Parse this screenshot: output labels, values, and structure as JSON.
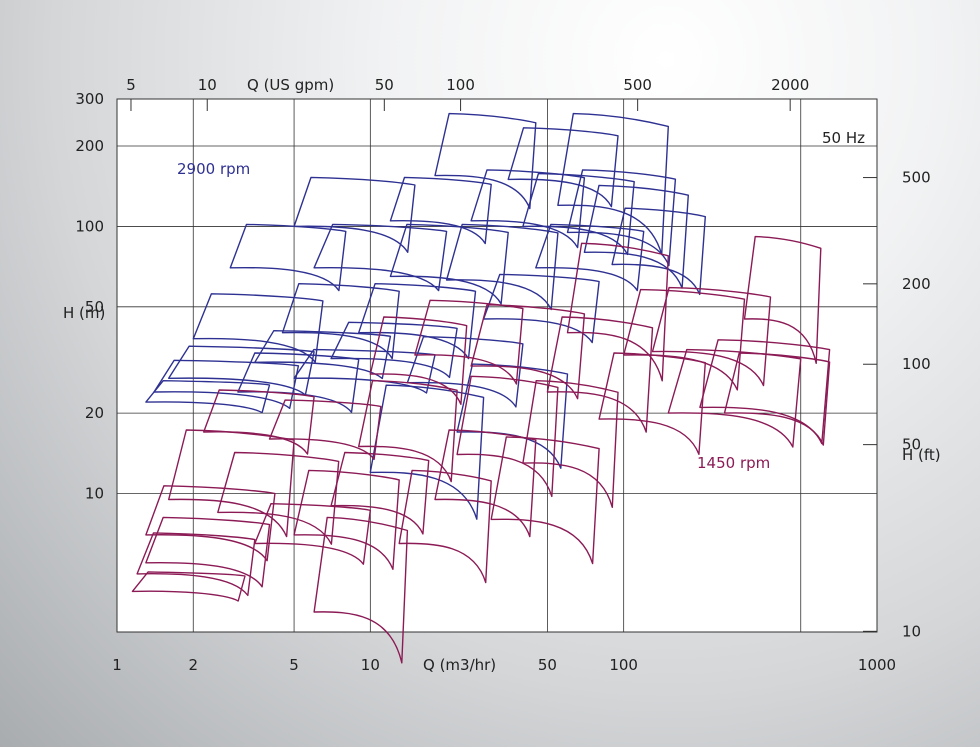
{
  "chart_data": {
    "type": "line",
    "title": "",
    "frequency_label": "50 Hz",
    "x_bottom": {
      "label": "Q (m3/hr)",
      "scale": "log",
      "range": [
        1,
        1000
      ],
      "ticks": [
        {
          "value": 1,
          "label": "1"
        },
        {
          "value": 2,
          "label": "2"
        },
        {
          "value": 5,
          "label": "5"
        },
        {
          "value": 10,
          "label": "10"
        },
        {
          "value": 50,
          "label": "50"
        },
        {
          "value": 100,
          "label": "100"
        },
        {
          "value": 1000,
          "label": "1000"
        }
      ],
      "grid_values": [
        2,
        5,
        10,
        50,
        100,
        500
      ]
    },
    "x_top": {
      "label": "Q (US gpm)",
      "scale": "log",
      "ticks": [
        {
          "value": 5,
          "label": "5"
        },
        {
          "value": 10,
          "label": "10"
        },
        {
          "value": 50,
          "label": "50"
        },
        {
          "value": 100,
          "label": "100"
        },
        {
          "value": 500,
          "label": "500"
        },
        {
          "value": 2000,
          "label": "2000"
        }
      ]
    },
    "y_left": {
      "label": "H (m)",
      "scale": "log",
      "range": [
        3.03,
        300
      ],
      "ticks": [
        {
          "value": 300,
          "label": "300"
        },
        {
          "value": 200,
          "label": "200"
        },
        {
          "value": 100,
          "label": "100"
        },
        {
          "value": 50,
          "label": "50"
        },
        {
          "value": 20,
          "label": "20"
        },
        {
          "value": 10,
          "label": "10"
        }
      ],
      "grid_values": [
        200,
        100,
        50,
        20,
        10
      ]
    },
    "y_right": {
      "label": "H (ft)",
      "scale": "log",
      "ticks": [
        {
          "value": 500,
          "label": "500"
        },
        {
          "value": 200,
          "label": "200"
        },
        {
          "value": 100,
          "label": "100"
        },
        {
          "value": 50,
          "label": "50"
        },
        {
          "value": 10,
          "label": "10"
        }
      ]
    },
    "series": [
      {
        "name": "2900 rpm",
        "color": "#2e3192",
        "regions": [
          {
            "q_min": 1.3,
            "q_max": 4.0,
            "h_top": 26,
            "h_bottom": 22
          },
          {
            "q_min": 1.4,
            "q_max": 5.2,
            "h_top": 31,
            "h_bottom": 24
          },
          {
            "q_min": 1.6,
            "q_max": 6.0,
            "h_top": 35,
            "h_bottom": 27
          },
          {
            "q_min": 2.0,
            "q_max": 6.5,
            "h_top": 55,
            "h_bottom": 38
          },
          {
            "q_min": 2.8,
            "q_max": 8.0,
            "h_top": 100,
            "h_bottom": 70
          },
          {
            "q_min": 3.0,
            "q_max": 9.0,
            "h_top": 33,
            "h_bottom": 24
          },
          {
            "q_min": 3.5,
            "q_max": 12,
            "h_top": 40,
            "h_bottom": 31
          },
          {
            "q_min": 4.5,
            "q_max": 13,
            "h_top": 60,
            "h_bottom": 40
          },
          {
            "q_min": 5.0,
            "q_max": 15,
            "h_top": 150,
            "h_bottom": 100
          },
          {
            "q_min": 5.0,
            "q_max": 18,
            "h_top": 34,
            "h_bottom": 27
          },
          {
            "q_min": 6.0,
            "q_max": 20,
            "h_top": 100,
            "h_bottom": 70
          },
          {
            "q_min": 7.0,
            "q_max": 22,
            "h_top": 43,
            "h_bottom": 32
          },
          {
            "q_min": 9.0,
            "q_max": 26,
            "h_top": 60,
            "h_bottom": 40
          },
          {
            "q_min": 10,
            "q_max": 28,
            "h_top": 25,
            "h_bottom": 12
          },
          {
            "q_min": 12,
            "q_max": 30,
            "h_top": 150,
            "h_bottom": 105
          },
          {
            "q_min": 12,
            "q_max": 35,
            "h_top": 100,
            "h_bottom": 65
          },
          {
            "q_min": 14,
            "q_max": 40,
            "h_top": 38,
            "h_bottom": 26
          },
          {
            "q_min": 18,
            "q_max": 45,
            "h_top": 260,
            "h_bottom": 155
          },
          {
            "q_min": 20,
            "q_max": 55,
            "h_top": 100,
            "h_bottom": 63
          },
          {
            "q_min": 22,
            "q_max": 60,
            "h_top": 30,
            "h_bottom": 17
          },
          {
            "q_min": 25,
            "q_max": 70,
            "h_top": 160,
            "h_bottom": 105
          },
          {
            "q_min": 28,
            "q_max": 80,
            "h_top": 65,
            "h_bottom": 45
          },
          {
            "q_min": 35,
            "q_max": 95,
            "h_top": 230,
            "h_bottom": 150
          },
          {
            "q_min": 40,
            "q_max": 110,
            "h_top": 155,
            "h_bottom": 100
          },
          {
            "q_min": 45,
            "q_max": 120,
            "h_top": 100,
            "h_bottom": 70
          },
          {
            "q_min": 55,
            "q_max": 150,
            "h_top": 260,
            "h_bottom": 120
          },
          {
            "q_min": 60,
            "q_max": 160,
            "h_top": 160,
            "h_bottom": 95
          },
          {
            "q_min": 70,
            "q_max": 180,
            "h_top": 140,
            "h_bottom": 80
          },
          {
            "q_min": 90,
            "q_max": 210,
            "h_top": 115,
            "h_bottom": 72
          }
        ]
      },
      {
        "name": "1450 rpm",
        "color": "#8b1a55",
        "regions": [
          {
            "q_min": 1.15,
            "q_max": 3.2,
            "h_top": 5.0,
            "h_bottom": 4.3
          },
          {
            "q_min": 1.2,
            "q_max": 3.5,
            "h_top": 7.0,
            "h_bottom": 5.0
          },
          {
            "q_min": 1.3,
            "q_max": 4.0,
            "h_top": 8.0,
            "h_bottom": 5.5
          },
          {
            "q_min": 1.3,
            "q_max": 4.2,
            "h_top": 10.5,
            "h_bottom": 7.0
          },
          {
            "q_min": 1.6,
            "q_max": 5.0,
            "h_top": 17,
            "h_bottom": 9.5
          },
          {
            "q_min": 2.2,
            "q_max": 6.0,
            "h_top": 24,
            "h_bottom": 17
          },
          {
            "q_min": 2.5,
            "q_max": 7.5,
            "h_top": 14,
            "h_bottom": 8.5
          },
          {
            "q_min": 3.5,
            "q_max": 10,
            "h_top": 9.0,
            "h_bottom": 6.5
          },
          {
            "q_min": 4.0,
            "q_max": 11,
            "h_top": 22,
            "h_bottom": 16
          },
          {
            "q_min": 5.0,
            "q_max": 13,
            "h_top": 12,
            "h_bottom": 7.0
          },
          {
            "q_min": 6.0,
            "q_max": 14,
            "h_top": 8.0,
            "h_bottom": 3.6
          },
          {
            "q_min": 7.0,
            "q_max": 17,
            "h_top": 14,
            "h_bottom": 9.0
          },
          {
            "q_min": 9.0,
            "q_max": 22,
            "h_top": 26,
            "h_bottom": 15
          },
          {
            "q_min": 10,
            "q_max": 24,
            "h_top": 45,
            "h_bottom": 28
          },
          {
            "q_min": 13,
            "q_max": 30,
            "h_top": 12,
            "h_bottom": 6.5
          },
          {
            "q_min": 15,
            "q_max": 40,
            "h_top": 52,
            "h_bottom": 33
          },
          {
            "q_min": 18,
            "q_max": 45,
            "h_top": 17,
            "h_bottom": 9.5
          },
          {
            "q_min": 22,
            "q_max": 55,
            "h_top": 27,
            "h_bottom": 14
          },
          {
            "q_min": 25,
            "q_max": 70,
            "h_top": 50,
            "h_bottom": 30
          },
          {
            "q_min": 30,
            "q_max": 80,
            "h_top": 16,
            "h_bottom": 8.0
          },
          {
            "q_min": 40,
            "q_max": 95,
            "h_top": 26,
            "h_bottom": 13
          },
          {
            "q_min": 50,
            "q_max": 130,
            "h_top": 45,
            "h_bottom": 24
          },
          {
            "q_min": 60,
            "q_max": 150,
            "h_top": 85,
            "h_bottom": 40
          },
          {
            "q_min": 80,
            "q_max": 210,
            "h_top": 33,
            "h_bottom": 19
          },
          {
            "q_min": 100,
            "q_max": 300,
            "h_top": 57,
            "h_bottom": 33
          },
          {
            "q_min": 130,
            "q_max": 380,
            "h_top": 58,
            "h_bottom": 34
          },
          {
            "q_min": 150,
            "q_max": 500,
            "h_top": 34,
            "h_bottom": 20
          },
          {
            "q_min": 200,
            "q_max": 650,
            "h_top": 37,
            "h_bottom": 21
          },
          {
            "q_min": 250,
            "q_max": 650,
            "h_top": 33,
            "h_bottom": 20
          },
          {
            "q_min": 300,
            "q_max": 600,
            "h_top": 90,
            "h_bottom": 45
          }
        ]
      }
    ],
    "legend": "none",
    "grid": true
  }
}
